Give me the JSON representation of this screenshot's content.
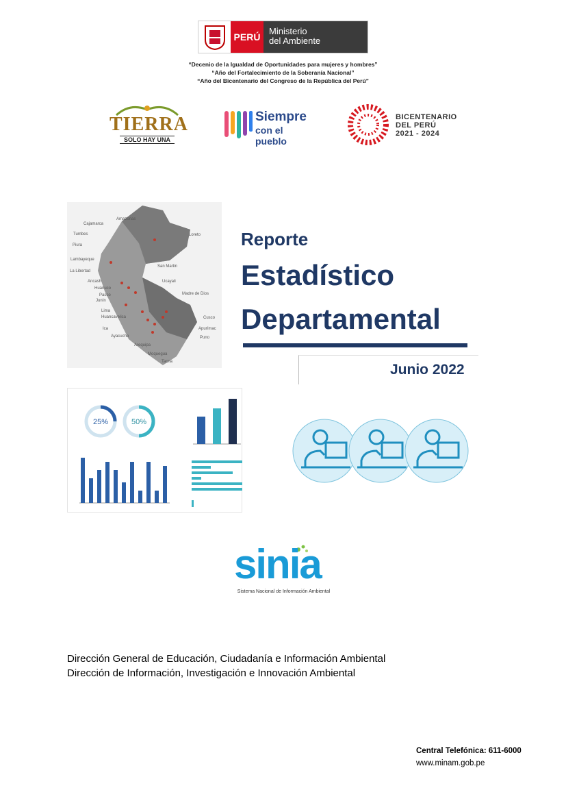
{
  "header": {
    "logo": {
      "country": "PERÚ",
      "ministry_line1": "Ministerio",
      "ministry_line2": "del Ambiente"
    },
    "mottos": [
      "“Decenio de la Igualdad de Oportunidades para mujeres y hombres”",
      "“Año del Fortalecimiento de la Soberanía Nacional”",
      "“Año del Bicentenario del Congreso de la República del Perú”"
    ]
  },
  "logos": {
    "tierra": {
      "title": "TIERRA",
      "subtitle": "SOLO HAY UNA"
    },
    "siempre": {
      "title": "Siempre",
      "subtitle": "con el pueblo"
    },
    "bicentenario": {
      "line1": "BICENTENARIO",
      "line2": "DEL PERÚ",
      "line3": "2021 - 2024"
    }
  },
  "cover": {
    "title_line1": "Reporte",
    "title_line2": "Estadístico",
    "title_line3": "Departamental",
    "date": "Junio 2022"
  },
  "map": {
    "labels": [
      "Cajamarca",
      "Amazonas",
      "Tumbes",
      "Loreto",
      "Piura",
      "Lambayeque",
      "San Martin",
      "La Libertad",
      "Ancash",
      "Ucayali",
      "Huánuco",
      "Madre de Dios",
      "Pasco",
      "Junín",
      "Lima",
      "Huancavelica",
      "Cusco",
      "Ica",
      "Apurímac",
      "Ayacucho",
      "Puno",
      "Arequipa",
      "Moquegua",
      "Tacna"
    ]
  },
  "illustration": {
    "donut_labels": [
      "25%",
      "50%"
    ]
  },
  "sinia": {
    "name": "sinia",
    "subtitle": "Sistema Nacional de Información Ambiental"
  },
  "footer": {
    "directions": [
      "Dirección General de Educación, Ciudadanía e Información Ambiental",
      "Dirección de Información, Investigación e Innovación Ambiental"
    ],
    "phone": "Central Telefónica: 611-6000",
    "web": "www.minam.gob.pe"
  }
}
